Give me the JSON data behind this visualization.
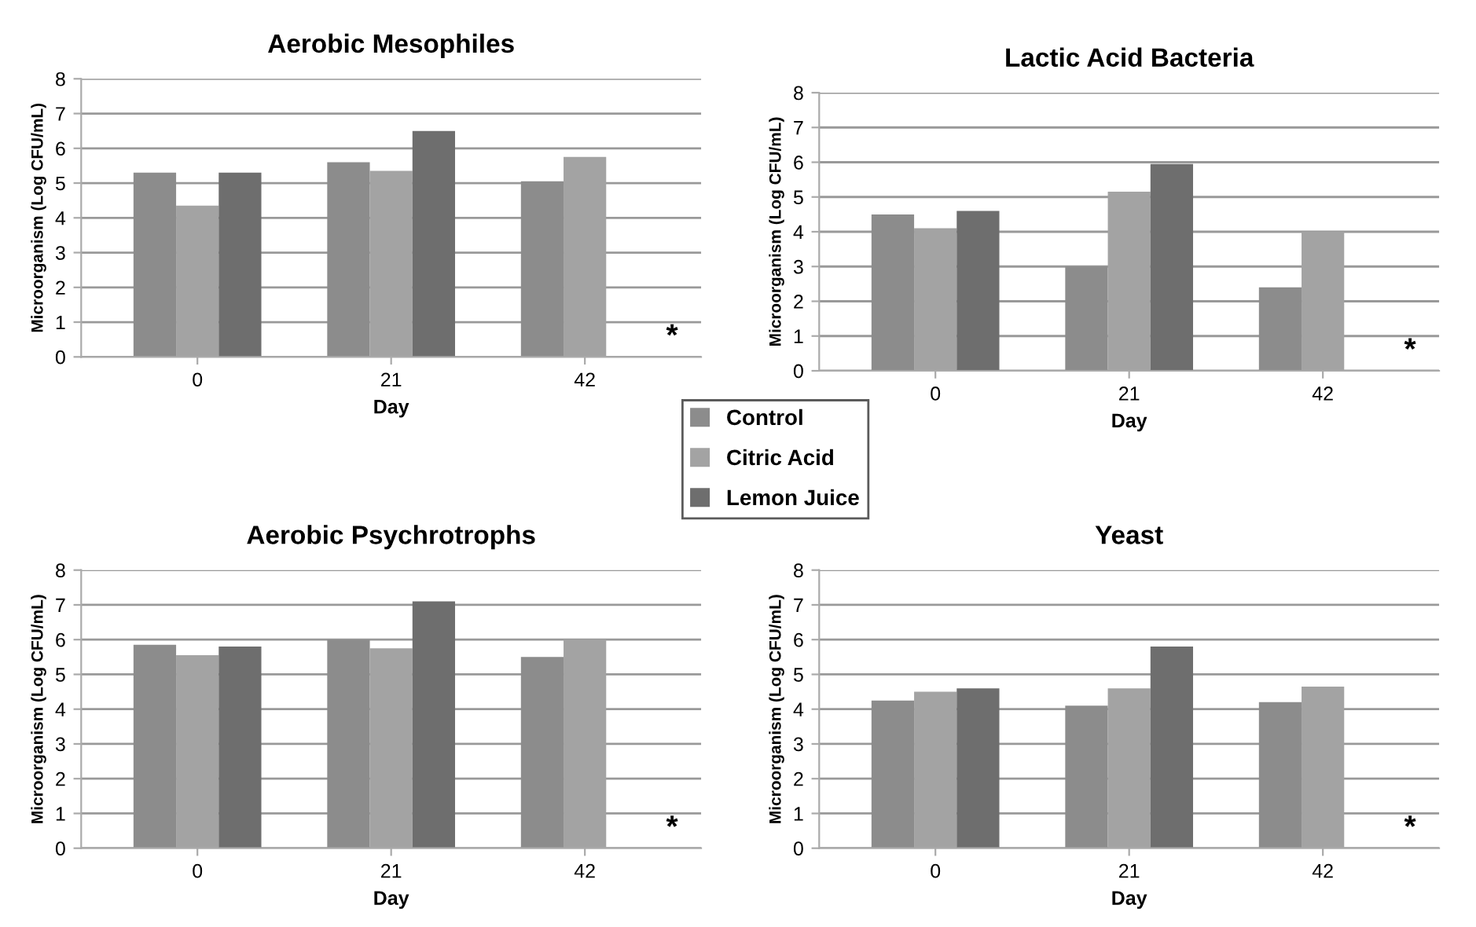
{
  "chart_data": [
    {
      "type": "bar",
      "title": "Aerobic Mesophiles",
      "xlabel": "Day",
      "ylabel": "Microorganism (Log CFU/mL)",
      "categories": [
        "0",
        "21",
        "42"
      ],
      "ylim": [
        0,
        8
      ],
      "yticks": [
        0,
        1,
        2,
        3,
        4,
        5,
        6,
        7,
        8
      ],
      "grid": "y",
      "legend": "bottom right",
      "series": [
        {
          "name": "Control",
          "color": "#8c8c8c",
          "values": [
            5.3,
            5.6,
            5.05
          ]
        },
        {
          "name": "Citric Acid",
          "color": "#a3a3a3",
          "values": [
            4.35,
            5.35,
            5.75
          ]
        },
        {
          "name": "Lemon Juice",
          "color": "#6e6e6e",
          "values": [
            5.3,
            6.5,
            null
          ]
        }
      ],
      "annotations": [
        "*"
      ]
    },
    {
      "type": "bar",
      "title": "Lactic Acid Bacteria",
      "xlabel": "Day",
      "ylabel": "Microorganism (Log CFU/mL)",
      "categories": [
        "0",
        "21",
        "42"
      ],
      "ylim": [
        0,
        8
      ],
      "yticks": [
        0,
        1,
        2,
        3,
        4,
        5,
        6,
        7,
        8
      ],
      "grid": "y",
      "series": [
        {
          "color": "#8c8c8c",
          "values": [
            4.5,
            3.0,
            2.4
          ]
        },
        {
          "color": "#a3a3a3",
          "values": [
            4.1,
            5.15,
            4.0
          ]
        },
        {
          "color": "#6e6e6e",
          "values": [
            4.6,
            5.95,
            null
          ]
        }
      ],
      "annotations": [
        "*"
      ]
    },
    {
      "type": "bar",
      "title": "Aerobic Psychrotrophs",
      "xlabel": "Day",
      "ylabel": "Microorganism (Log CFU/mL)",
      "categories": [
        "0",
        "21",
        "42"
      ],
      "ylim": [
        0,
        8
      ],
      "yticks": [
        0,
        1,
        2,
        3,
        4,
        5,
        6,
        7,
        8
      ],
      "grid": "y",
      "series": [
        {
          "color": "#8c8c8c",
          "values": [
            5.85,
            6.0,
            5.5
          ]
        },
        {
          "color": "#a3a3a3",
          "values": [
            5.55,
            5.75,
            6.0
          ]
        },
        {
          "color": "#6e6e6e",
          "values": [
            5.8,
            7.1,
            null
          ]
        }
      ],
      "annotations": [
        "*"
      ]
    },
    {
      "type": "bar",
      "title": "Yeast",
      "xlabel": "Day",
      "ylabel": "Microorganism (Log CFU/mL)",
      "categories": [
        "0",
        "21",
        "42"
      ],
      "ylim": [
        0,
        8
      ],
      "yticks": [
        0,
        1,
        2,
        3,
        4,
        5,
        6,
        7,
        8
      ],
      "grid": "y",
      "series": [
        {
          "color": "#8c8c8c",
          "values": [
            4.25,
            4.1,
            4.2
          ]
        },
        {
          "color": "#a3a3a3",
          "values": [
            4.5,
            4.6,
            4.65
          ]
        },
        {
          "color": "#6e6e6e",
          "values": [
            4.6,
            5.8,
            null
          ]
        }
      ],
      "annotations": [
        "*"
      ]
    }
  ]
}
